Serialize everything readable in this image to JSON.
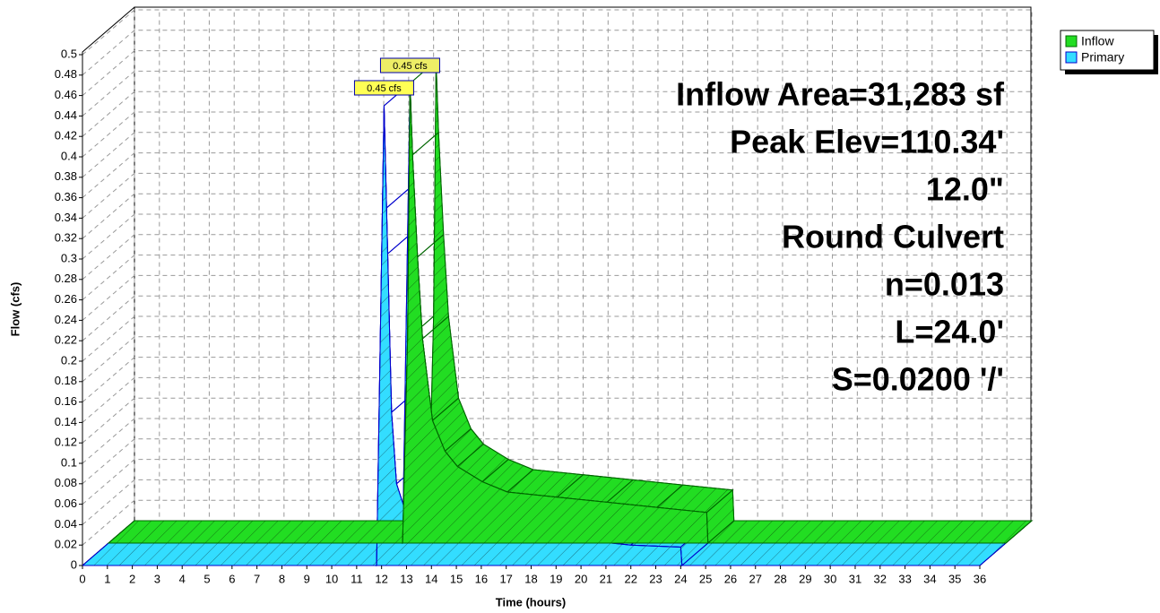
{
  "chart_data": {
    "type": "area3d",
    "xlabel": "Time  (hours)",
    "ylabel": "Flow  (cfs)",
    "xlim": [
      0,
      36
    ],
    "ylim": [
      0,
      0.5
    ],
    "xticks": [
      0,
      1,
      2,
      3,
      4,
      5,
      6,
      7,
      8,
      9,
      10,
      11,
      12,
      13,
      14,
      15,
      16,
      17,
      18,
      19,
      20,
      21,
      22,
      23,
      24,
      25,
      26,
      27,
      28,
      29,
      30,
      31,
      32,
      33,
      34,
      35,
      36
    ],
    "yticks": [
      0,
      0.02,
      0.04,
      0.06,
      0.08,
      0.1,
      0.12,
      0.14,
      0.16,
      0.18,
      0.2,
      0.22,
      0.24,
      0.26,
      0.28,
      0.3,
      0.32,
      0.34,
      0.36,
      0.38,
      0.4,
      0.42,
      0.44,
      0.46,
      0.48,
      0.5
    ],
    "grid": true,
    "legend": "top-right",
    "annotations": [
      "Inflow Area=31,283 sf",
      "Peak Elev=110.34'",
      "12.0\"",
      "Round Culvert",
      "n=0.013",
      "L=24.0'",
      "S=0.0200 '/'"
    ],
    "x": [
      0,
      11.8,
      12.0,
      12.1,
      12.2,
      12.4,
      12.6,
      13.0,
      13.5,
      14.0,
      15.0,
      16.0,
      18.0,
      20.0,
      22.0,
      24.0,
      24.05,
      36
    ],
    "series": [
      {
        "name": "Inflow",
        "color": "#22dd22",
        "edge": "#006600",
        "values": [
          0,
          0,
          0.2,
          0.45,
          0.38,
          0.28,
          0.2,
          0.12,
          0.09,
          0.075,
          0.06,
          0.05,
          0.045,
          0.04,
          0.035,
          0.03,
          0,
          0
        ],
        "value_labels": [
          null,
          null,
          null,
          "0.45 cfs",
          null,
          null,
          null,
          null,
          null,
          null,
          null,
          null,
          null,
          null,
          null,
          null,
          null,
          null
        ],
        "label_color": "#eeee66"
      },
      {
        "name": "Primary",
        "color": "#33ddff",
        "edge": "#0000cc",
        "values": [
          0,
          0,
          0.3,
          0.45,
          0.35,
          0.15,
          0.08,
          0.05,
          0.045,
          0.04,
          0.037,
          0.035,
          0.03,
          0.025,
          0.02,
          0.018,
          0,
          0
        ],
        "value_labels": [
          null,
          null,
          null,
          "0.45 cfs",
          null,
          null,
          null,
          null,
          null,
          null,
          null,
          null,
          null,
          null,
          null,
          null,
          null,
          null
        ],
        "label_color": "#ffff55"
      }
    ]
  }
}
